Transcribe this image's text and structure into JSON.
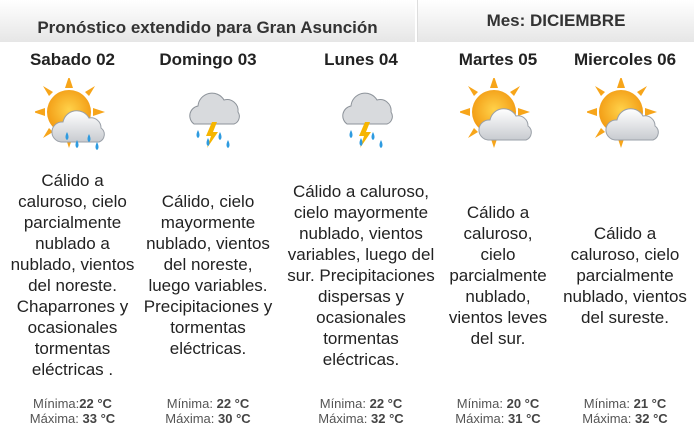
{
  "header": {
    "title": "Pronóstico extendido para Gran Asunción",
    "month": "Mes: DICIEMBRE"
  },
  "days": [
    {
      "name": "Sabado 02",
      "description": "Cálido a caluroso, cielo parcialmente nublado a nublado, vientos del noreste. Chaparrones y ocasionales tormentas eléctricas .",
      "min_label": "Mínima:",
      "min": "22 °C",
      "max_label": "Máxima:",
      "max": "33 °C"
    },
    {
      "name": "Domingo 03",
      "description": "Cálido, cielo mayormente nublado, vientos del noreste, luego variables. Precipitaciones y tormentas eléctricas.",
      "min_label": "Mínima:",
      "min": "22 °C",
      "max_label": "Máxima:",
      "max": "30 °C"
    },
    {
      "name": "Lunes 04",
      "description": "Cálido a caluroso, cielo mayormente nublado, vientos variables, luego del sur. Precipitaciones dispersas y ocasionales tormentas eléctricas.",
      "min_label": "Mínima:",
      "min": "22 °C",
      "max_label": "Máxima:",
      "max": "32 °C"
    },
    {
      "name": "Martes 05",
      "description": "Cálido a caluroso, cielo parcialmente nublado, vientos leves del sur.",
      "min_label": "Mínima:",
      "min": "20 °C",
      "max_label": "Máxima:",
      "max": "31 °C"
    },
    {
      "name": "Miercoles 06",
      "description": "Cálido a caluroso, cielo parcialmente nublado, vientos del sureste.",
      "min_label": "Mínima:",
      "min": "21 °C",
      "max_label": "Máxima:",
      "max": "32 °C"
    }
  ]
}
